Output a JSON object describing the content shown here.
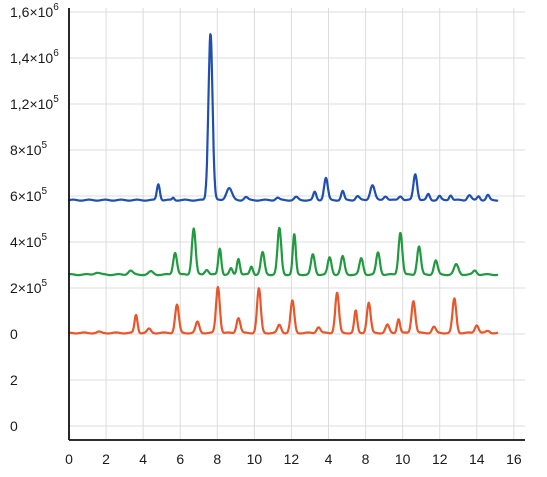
{
  "chart_data": {
    "type": "line",
    "title": "",
    "xlabel": "",
    "ylabel": "",
    "grid": true,
    "xlim": [
      0,
      16.4
    ],
    "x_tick_labels": [
      "0",
      "2",
      "4",
      "6",
      "8",
      "10",
      "12",
      "4",
      "8",
      "10",
      "12",
      "14",
      "16"
    ],
    "y_tick_labels": [
      {
        "base": "1,6×10",
        "exp": "6"
      },
      {
        "base": "1,4×10",
        "exp": "6"
      },
      {
        "base": "1,2×10",
        "exp": "5"
      },
      {
        "base": "8×10",
        "exp": "5"
      },
      {
        "base": "6×10",
        "exp": "5"
      },
      {
        "base": "4×10",
        "exp": "5"
      },
      {
        "base": "2×10",
        "exp": "5"
      },
      {
        "base": "0",
        "exp": ""
      },
      {
        "base": "2",
        "exp": ""
      },
      {
        "base": "0",
        "exp": ""
      }
    ],
    "series": [
      {
        "color": "#1f4fb0",
        "baseline": 690000,
        "x_range": [
          0,
          15.4
        ],
        "peaks": [
          [
            4.8,
            80000,
            0.08
          ],
          [
            5.6,
            12000,
            0.06
          ],
          [
            7.6,
            830000,
            0.11
          ],
          [
            8.6,
            60000,
            0.15
          ],
          [
            9.5,
            15000,
            0.1
          ],
          [
            11.2,
            12000,
            0.1
          ],
          [
            12.2,
            15000,
            0.1
          ],
          [
            13.2,
            40000,
            0.08
          ],
          [
            13.8,
            110000,
            0.1
          ],
          [
            14.7,
            45000,
            0.08
          ],
          [
            15.5,
            20000,
            0.1
          ],
          [
            16.3,
            75000,
            0.12
          ],
          [
            17.0,
            20000,
            0.1
          ],
          [
            17.8,
            20000,
            0.1
          ],
          [
            18.6,
            130000,
            0.1
          ],
          [
            19.3,
            30000,
            0.08
          ],
          [
            19.9,
            20000,
            0.08
          ],
          [
            20.5,
            25000,
            0.08
          ],
          [
            21.5,
            25000,
            0.1
          ],
          [
            22.0,
            20000,
            0.08
          ],
          [
            22.5,
            25000,
            0.08
          ]
        ]
      },
      {
        "color": "#1f9a3f",
        "baseline": 320000,
        "x_range": [
          0,
          15.4
        ],
        "peaks": [
          [
            1.5,
            10000,
            0.15
          ],
          [
            3.3,
            20000,
            0.12
          ],
          [
            4.4,
            15000,
            0.12
          ],
          [
            5.7,
            110000,
            0.1
          ],
          [
            6.7,
            230000,
            0.1
          ],
          [
            7.4,
            25000,
            0.1
          ],
          [
            8.1,
            130000,
            0.08
          ],
          [
            8.7,
            30000,
            0.08
          ],
          [
            9.1,
            80000,
            0.08
          ],
          [
            9.8,
            40000,
            0.08
          ],
          [
            10.4,
            110000,
            0.1
          ],
          [
            11.3,
            230000,
            0.1
          ],
          [
            12.1,
            200000,
            0.08
          ],
          [
            13.1,
            100000,
            0.1
          ],
          [
            14.0,
            85000,
            0.1
          ],
          [
            14.7,
            90000,
            0.1
          ],
          [
            15.7,
            80000,
            0.1
          ],
          [
            16.6,
            110000,
            0.1
          ],
          [
            17.8,
            210000,
            0.1
          ],
          [
            18.8,
            140000,
            0.1
          ],
          [
            19.7,
            70000,
            0.1
          ],
          [
            20.8,
            50000,
            0.12
          ],
          [
            21.8,
            20000,
            0.1
          ]
        ]
      },
      {
        "color": "#e8562a",
        "baseline": 30000,
        "x_range": [
          0,
          15.4
        ],
        "peaks": [
          [
            1.6,
            5000,
            0.1
          ],
          [
            3.6,
            90000,
            0.08
          ],
          [
            4.3,
            20000,
            0.1
          ],
          [
            5.8,
            140000,
            0.1
          ],
          [
            6.9,
            55000,
            0.1
          ],
          [
            8.0,
            230000,
            0.1
          ],
          [
            9.1,
            75000,
            0.1
          ],
          [
            10.2,
            220000,
            0.1
          ],
          [
            11.3,
            40000,
            0.1
          ],
          [
            12.0,
            160000,
            0.1
          ],
          [
            13.4,
            30000,
            0.1
          ],
          [
            14.4,
            200000,
            0.1
          ],
          [
            15.4,
            110000,
            0.08
          ],
          [
            16.1,
            150000,
            0.1
          ],
          [
            17.1,
            40000,
            0.1
          ],
          [
            17.7,
            70000,
            0.08
          ],
          [
            18.5,
            160000,
            0.1
          ],
          [
            19.6,
            30000,
            0.1
          ],
          [
            20.7,
            170000,
            0.1
          ],
          [
            21.9,
            40000,
            0.1
          ],
          [
            22.5,
            10000,
            0.1
          ]
        ]
      }
    ]
  }
}
